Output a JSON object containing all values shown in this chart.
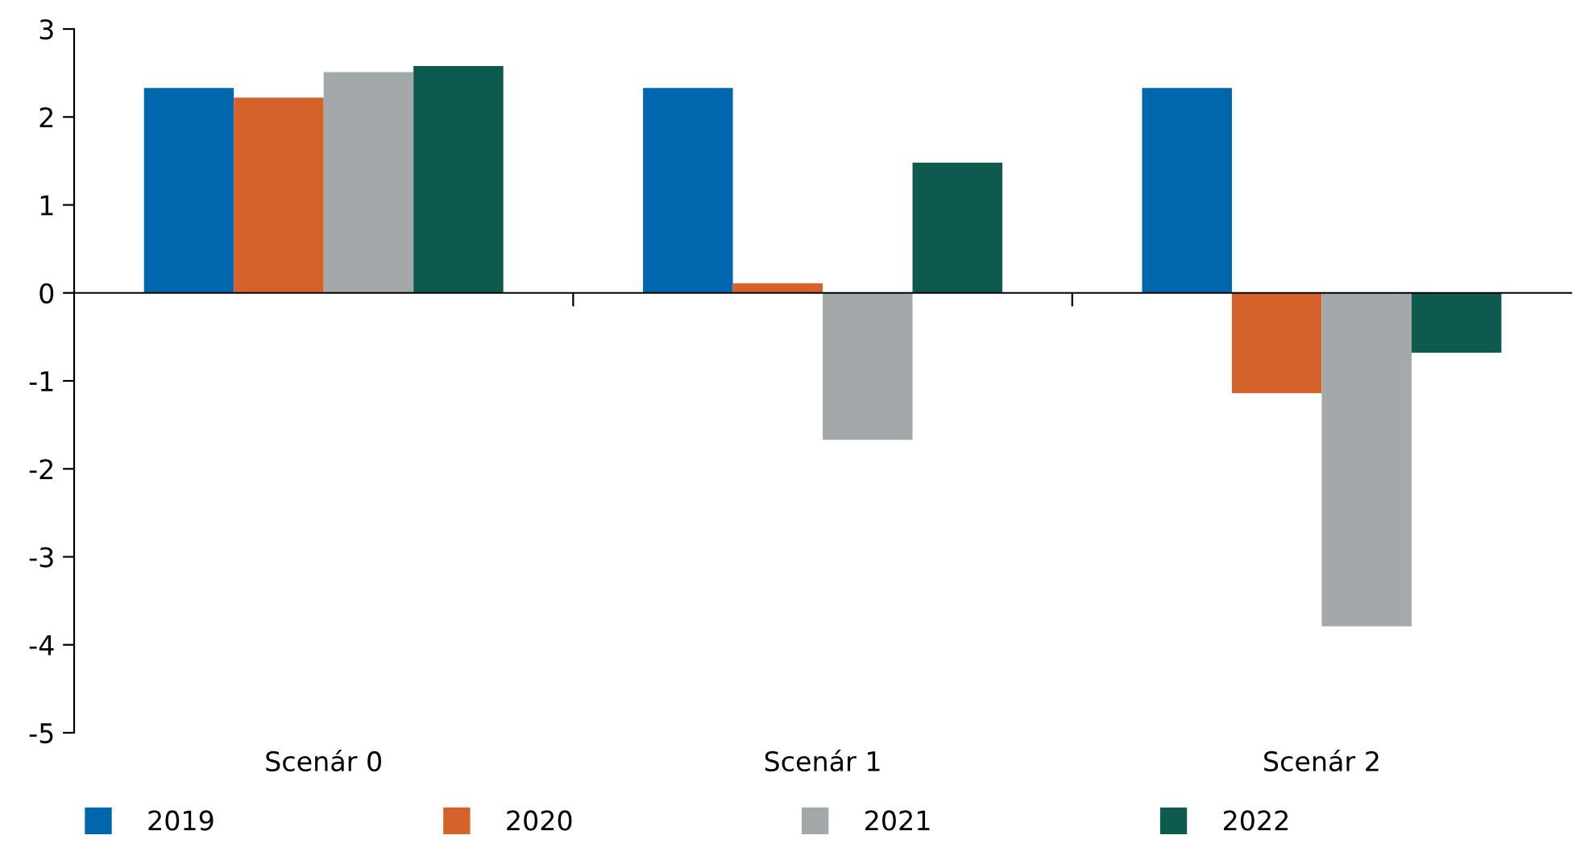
{
  "chart_data": {
    "type": "bar",
    "categories": [
      "Scenár 0",
      "Scenár 1",
      "Scenár 2"
    ],
    "series": [
      {
        "name": "2019",
        "color": "#0066ad",
        "values": [
          2.33,
          2.33,
          2.33
        ]
      },
      {
        "name": "2020",
        "color": "#d4622a",
        "values": [
          2.22,
          0.11,
          -1.14
        ]
      },
      {
        "name": "2021",
        "color": "#a3a9ab",
        "values": [
          2.51,
          -1.67,
          -3.79
        ]
      },
      {
        "name": "2022",
        "color": "#0f5a4e",
        "values": [
          2.58,
          1.48,
          -0.68
        ]
      }
    ],
    "ylim": [
      -5,
      3
    ],
    "yticks": [
      -5,
      -4,
      -3,
      -2,
      -1,
      0,
      1,
      2,
      3
    ],
    "legend": "bottom"
  }
}
